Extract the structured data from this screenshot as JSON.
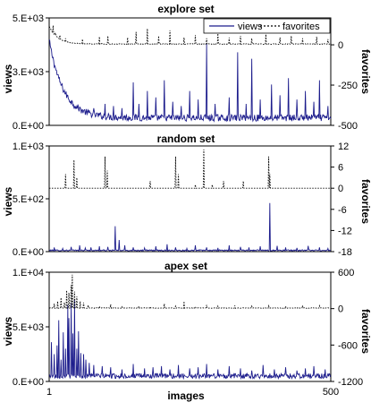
{
  "colors": {
    "views": "#1c1c8c",
    "favorites": "#000000",
    "axis": "#000000",
    "background": "#ffffff"
  },
  "legend": {
    "views_label": "views",
    "favorites_label": "favorites",
    "placement": "top-right of first panel"
  },
  "xlabel": "images",
  "x_ticks": [
    "1",
    "500"
  ],
  "chart_data": [
    {
      "type": "line",
      "title": "explore set",
      "xlabel": "images",
      "ylabel": "views",
      "y2label": "favorites",
      "xlim": [
        1,
        500
      ],
      "ylim": [
        0,
        5000
      ],
      "y2lim": [
        -500,
        167
      ],
      "yticks": [
        "0.E+00",
        "3.E+03",
        "5.E+03"
      ],
      "yticks_values": [
        0,
        2500,
        5000
      ],
      "y2ticks": [
        "-500",
        "-250",
        "0"
      ],
      "y2ticks_values": [
        -500,
        -250,
        0
      ],
      "grid": false,
      "series": [
        {
          "name": "views",
          "style": "solid",
          "axis": "left",
          "baseline": 350,
          "decay": [
            3600,
            25
          ],
          "spikes": [
            [
              9,
              3000
            ],
            [
              12,
              2500
            ],
            [
              14,
              2000
            ],
            [
              20,
              1700
            ],
            [
              25,
              1500
            ],
            [
              30,
              1200
            ],
            [
              35,
              900
            ],
            [
              45,
              800
            ],
            [
              60,
              700
            ],
            [
              80,
              800
            ],
            [
              100,
              1000
            ],
            [
              115,
              900
            ],
            [
              130,
              800
            ],
            [
              150,
              2000
            ],
            [
              160,
              1000
            ],
            [
              175,
              1600
            ],
            [
              190,
              1300
            ],
            [
              205,
              2100
            ],
            [
              220,
              1100
            ],
            [
              235,
              900
            ],
            [
              250,
              1600
            ],
            [
              265,
              1200
            ],
            [
              280,
              3800
            ],
            [
              295,
              1000
            ],
            [
              320,
              1300
            ],
            [
              335,
              3400
            ],
            [
              350,
              1000
            ],
            [
              360,
              3100
            ],
            [
              375,
              1200
            ],
            [
              395,
              1900
            ],
            [
              410,
              1400
            ],
            [
              425,
              2200
            ],
            [
              440,
              1200
            ],
            [
              455,
              1600
            ],
            [
              470,
              1100
            ],
            [
              480,
              2100
            ],
            [
              495,
              900
            ]
          ]
        },
        {
          "name": "favorites",
          "style": "dotted",
          "axis": "right",
          "baseline": 5,
          "decay": [
            110,
            15
          ],
          "spikes": [
            [
              5,
              90
            ],
            [
              8,
              120
            ],
            [
              12,
              75
            ],
            [
              20,
              60
            ],
            [
              30,
              40
            ],
            [
              60,
              35
            ],
            [
              90,
              50
            ],
            [
              105,
              55
            ],
            [
              140,
              45
            ],
            [
              155,
              80
            ],
            [
              175,
              100
            ],
            [
              195,
              55
            ],
            [
              215,
              90
            ],
            [
              240,
              45
            ],
            [
              260,
              60
            ],
            [
              280,
              40
            ],
            [
              300,
              70
            ],
            [
              320,
              45
            ],
            [
              340,
              55
            ],
            [
              360,
              40
            ],
            [
              385,
              65
            ],
            [
              410,
              45
            ],
            [
              430,
              55
            ],
            [
              450,
              40
            ],
            [
              475,
              50
            ],
            [
              495,
              35
            ]
          ]
        }
      ]
    },
    {
      "type": "line",
      "title": "random set",
      "xlabel": "images",
      "ylabel": "views",
      "y2label": "favorites",
      "xlim": [
        1,
        500
      ],
      "ylim": [
        0,
        1000
      ],
      "y2lim": [
        -18,
        12
      ],
      "yticks": [
        "0.E+00",
        "5.E+02",
        "1.E+03"
      ],
      "yticks_values": [
        0,
        500,
        1000
      ],
      "y2ticks": [
        "-18",
        "-12",
        "-6",
        "0",
        "6",
        "12"
      ],
      "y2ticks_values": [
        -18,
        -12,
        -6,
        0,
        6,
        12
      ],
      "grid": false,
      "series": [
        {
          "name": "views",
          "style": "solid",
          "axis": "left",
          "baseline": 12,
          "decay": [
            0,
            1
          ],
          "spikes": [
            [
              10,
              40
            ],
            [
              25,
              30
            ],
            [
              40,
              45
            ],
            [
              55,
              60
            ],
            [
              65,
              35
            ],
            [
              75,
              40
            ],
            [
              90,
              50
            ],
            [
              105,
              45
            ],
            [
              118,
              240
            ],
            [
              125,
              110
            ],
            [
              135,
              60
            ],
            [
              150,
              40
            ],
            [
              170,
              35
            ],
            [
              190,
              50
            ],
            [
              210,
              70
            ],
            [
              225,
              40
            ],
            [
              245,
              30
            ],
            [
              260,
              60
            ],
            [
              280,
              40
            ],
            [
              300,
              35
            ],
            [
              320,
              60
            ],
            [
              340,
              45
            ],
            [
              355,
              40
            ],
            [
              375,
              50
            ],
            [
              392,
              460
            ],
            [
              405,
              55
            ],
            [
              420,
              40
            ],
            [
              440,
              35
            ],
            [
              460,
              55
            ],
            [
              480,
              40
            ],
            [
              495,
              30
            ]
          ]
        },
        {
          "name": "favorites",
          "style": "dotted",
          "axis": "right",
          "baseline": 0,
          "decay": [
            0,
            1
          ],
          "spikes": [
            [
              30,
              4
            ],
            [
              45,
              8
            ],
            [
              50,
              3
            ],
            [
              100,
              9
            ],
            [
              104,
              5
            ],
            [
              180,
              2
            ],
            [
              225,
              9
            ],
            [
              230,
              4
            ],
            [
              260,
              1
            ],
            [
              275,
              11
            ],
            [
              290,
              1
            ],
            [
              310,
              2
            ],
            [
              345,
              2
            ],
            [
              390,
              9
            ],
            [
              392,
              4
            ]
          ]
        }
      ]
    },
    {
      "type": "line",
      "title": "apex set",
      "xlabel": "images",
      "ylabel": "views",
      "y2label": "favorites",
      "xlim": [
        1,
        500
      ],
      "ylim": [
        0,
        10000
      ],
      "y2lim": [
        -1200,
        600
      ],
      "yticks": [
        "0.E+00",
        "5.E+03",
        "1.E+04"
      ],
      "yticks_values": [
        0,
        5000,
        10000
      ],
      "y2ticks": [
        "-1200",
        "-600",
        "0",
        "600"
      ],
      "y2ticks_values": [
        -1200,
        -600,
        0,
        600
      ],
      "grid": false,
      "series": [
        {
          "name": "views",
          "style": "solid",
          "axis": "left",
          "baseline": 500,
          "decay": [
            0,
            1
          ],
          "spikes": [
            [
              5,
              3600
            ],
            [
              10,
              2500
            ],
            [
              15,
              3300
            ],
            [
              18,
              5600
            ],
            [
              22,
              2000
            ],
            [
              26,
              4500
            ],
            [
              30,
              3000
            ],
            [
              34,
              7000
            ],
            [
              36,
              5800
            ],
            [
              40,
              7200
            ],
            [
              43,
              4400
            ],
            [
              46,
              7500
            ],
            [
              50,
              3000
            ],
            [
              53,
              4600
            ],
            [
              57,
              2600
            ],
            [
              62,
              2500
            ],
            [
              66,
              2000
            ],
            [
              72,
              1700
            ],
            [
              80,
              1500
            ],
            [
              95,
              1400
            ],
            [
              110,
              1300
            ],
            [
              130,
              1100
            ],
            [
              150,
              1600
            ],
            [
              170,
              1200
            ],
            [
              185,
              1300
            ],
            [
              200,
              1400
            ],
            [
              215,
              1100
            ],
            [
              230,
              1500
            ],
            [
              250,
              1200
            ],
            [
              265,
              1300
            ],
            [
              280,
              1600
            ],
            [
              300,
              1100
            ],
            [
              320,
              1400
            ],
            [
              340,
              1200
            ],
            [
              360,
              1000
            ],
            [
              380,
              1500
            ],
            [
              400,
              1100
            ],
            [
              420,
              1300
            ],
            [
              440,
              1000
            ],
            [
              455,
              1200
            ],
            [
              470,
              1400
            ],
            [
              490,
              1100
            ]
          ]
        },
        {
          "name": "favorites",
          "style": "dotted",
          "axis": "right",
          "baseline": 10,
          "decay": [
            0,
            1
          ],
          "spikes": [
            [
              10,
              80
            ],
            [
              16,
              120
            ],
            [
              22,
              180
            ],
            [
              28,
              100
            ],
            [
              32,
              300
            ],
            [
              36,
              260
            ],
            [
              40,
              390
            ],
            [
              42,
              560
            ],
            [
              46,
              280
            ],
            [
              50,
              200
            ],
            [
              56,
              120
            ],
            [
              62,
              100
            ],
            [
              70,
              60
            ],
            [
              90,
              40
            ],
            [
              110,
              70
            ],
            [
              130,
              30
            ],
            [
              160,
              40
            ],
            [
              180,
              30
            ],
            [
              205,
              80
            ],
            [
              225,
              40
            ],
            [
              240,
              120
            ],
            [
              260,
              30
            ],
            [
              280,
              60
            ],
            [
              300,
              40
            ],
            [
              330,
              50
            ],
            [
              360,
              40
            ],
            [
              390,
              45
            ],
            [
              420,
              40
            ],
            [
              450,
              50
            ],
            [
              480,
              45
            ]
          ]
        }
      ]
    }
  ]
}
